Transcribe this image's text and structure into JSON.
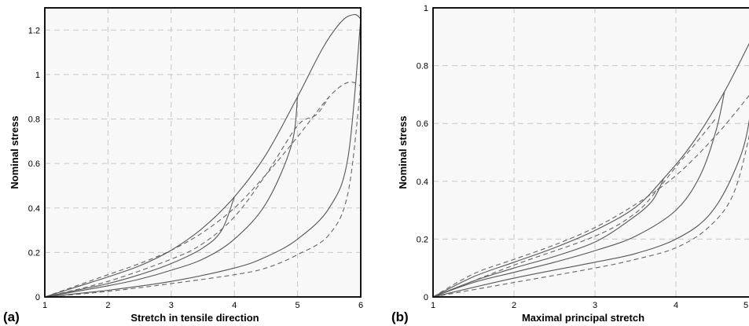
{
  "chart_data": [
    {
      "type": "line",
      "panel_label": "(a)",
      "xlabel": "Stretch in tensile direction",
      "ylabel": "Nominal stress",
      "xlim": [
        1,
        6
      ],
      "ylim": [
        0,
        1.3
      ],
      "xticks": [
        1,
        2,
        3,
        4,
        5,
        6
      ],
      "yticks": [
        0,
        0.2,
        0.4,
        0.6,
        0.8,
        1,
        1.2
      ],
      "grid": true,
      "series": [
        {
          "style": "solid",
          "points": [
            [
              1,
              0
            ],
            [
              1.5,
              0.045
            ],
            [
              2,
              0.09
            ],
            [
              2.5,
              0.14
            ],
            [
              3,
              0.21
            ],
            [
              3.5,
              0.31
            ],
            [
              4,
              0.45
            ],
            [
              4.5,
              0.64
            ],
            [
              5,
              0.9
            ],
            [
              5.4,
              1.12
            ],
            [
              5.7,
              1.24
            ],
            [
              5.9,
              1.27
            ],
            [
              6,
              1.25
            ]
          ]
        },
        {
          "style": "solid",
          "points": [
            [
              1,
              0
            ],
            [
              1.5,
              0.03
            ],
            [
              2,
              0.06
            ],
            [
              2.5,
              0.1
            ],
            [
              3,
              0.15
            ],
            [
              3.5,
              0.22
            ],
            [
              3.8,
              0.3
            ],
            [
              4,
              0.45
            ]
          ]
        },
        {
          "style": "solid",
          "points": [
            [
              1,
              0
            ],
            [
              1.5,
              0.025
            ],
            [
              2,
              0.05
            ],
            [
              2.5,
              0.08
            ],
            [
              3,
              0.12
            ],
            [
              3.5,
              0.17
            ],
            [
              4,
              0.26
            ],
            [
              4.5,
              0.42
            ],
            [
              4.9,
              0.68
            ],
            [
              5,
              0.9
            ]
          ]
        },
        {
          "style": "solid",
          "points": [
            [
              1,
              0
            ],
            [
              2,
              0.03
            ],
            [
              3,
              0.07
            ],
            [
              4,
              0.13
            ],
            [
              4.5,
              0.18
            ],
            [
              5,
              0.26
            ],
            [
              5.5,
              0.4
            ],
            [
              5.8,
              0.63
            ],
            [
              6,
              1.25
            ]
          ]
        },
        {
          "style": "dashed",
          "points": [
            [
              1,
              0
            ],
            [
              1.5,
              0.05
            ],
            [
              2,
              0.1
            ],
            [
              2.5,
              0.15
            ],
            [
              3,
              0.21
            ],
            [
              3.5,
              0.29
            ],
            [
              4,
              0.4
            ],
            [
              4.5,
              0.55
            ],
            [
              5,
              0.72
            ],
            [
              5.5,
              0.9
            ],
            [
              5.8,
              0.965
            ],
            [
              6,
              0.95
            ]
          ]
        },
        {
          "style": "dashed",
          "points": [
            [
              1,
              0
            ],
            [
              2,
              0.07
            ],
            [
              3,
              0.17
            ],
            [
              3.5,
              0.24
            ],
            [
              4,
              0.36
            ],
            [
              4.5,
              0.55
            ],
            [
              5,
              0.77
            ],
            [
              5.3,
              0.82
            ],
            [
              5.5,
              0.9
            ]
          ]
        },
        {
          "style": "dashed",
          "points": [
            [
              1,
              0
            ],
            [
              2,
              0.025
            ],
            [
              3,
              0.06
            ],
            [
              4,
              0.1
            ],
            [
              4.5,
              0.13
            ],
            [
              5,
              0.19
            ],
            [
              5.5,
              0.28
            ],
            [
              5.8,
              0.47
            ],
            [
              6,
              0.95
            ]
          ]
        }
      ]
    },
    {
      "type": "line",
      "panel_label": "(b)",
      "xlabel": "Maximal principal stretch",
      "ylabel": "Nominal stress",
      "xlim": [
        1,
        5
      ],
      "ylim": [
        0,
        1
      ],
      "xticks": [
        1,
        2,
        3,
        4,
        5
      ],
      "xtick_labels": [
        "1",
        "2",
        "3",
        "4",
        "5"
      ],
      "yticks": [
        0,
        0.2,
        0.4,
        0.6,
        0.8,
        1
      ],
      "grid": true,
      "series": [
        {
          "style": "solid",
          "points": [
            [
              1,
              0
            ],
            [
              1.5,
              0.07
            ],
            [
              2,
              0.12
            ],
            [
              2.5,
              0.17
            ],
            [
              3,
              0.23
            ],
            [
              3.5,
              0.31
            ],
            [
              3.85,
              0.41
            ],
            [
              4.2,
              0.53
            ],
            [
              4.6,
              0.71
            ],
            [
              5,
              0.93
            ]
          ]
        },
        {
          "style": "solid",
          "points": [
            [
              1,
              0
            ],
            [
              1.5,
              0.055
            ],
            [
              2,
              0.1
            ],
            [
              2.5,
              0.14
            ],
            [
              3,
              0.19
            ],
            [
              3.4,
              0.26
            ],
            [
              3.7,
              0.33
            ],
            [
              3.85,
              0.41
            ]
          ]
        },
        {
          "style": "solid",
          "points": [
            [
              1,
              0
            ],
            [
              1.5,
              0.05
            ],
            [
              2,
              0.085
            ],
            [
              2.5,
              0.12
            ],
            [
              3,
              0.16
            ],
            [
              3.5,
              0.21
            ],
            [
              4,
              0.3
            ],
            [
              4.3,
              0.42
            ],
            [
              4.5,
              0.58
            ],
            [
              4.6,
              0.71
            ]
          ]
        },
        {
          "style": "solid",
          "points": [
            [
              1,
              0
            ],
            [
              2,
              0.065
            ],
            [
              3,
              0.12
            ],
            [
              3.5,
              0.15
            ],
            [
              4,
              0.2
            ],
            [
              4.4,
              0.28
            ],
            [
              4.7,
              0.42
            ],
            [
              4.9,
              0.6
            ],
            [
              5,
              0.93
            ]
          ]
        },
        {
          "style": "dashed",
          "points": [
            [
              1,
              0
            ],
            [
              1.5,
              0.08
            ],
            [
              2,
              0.13
            ],
            [
              2.5,
              0.18
            ],
            [
              3,
              0.24
            ],
            [
              3.5,
              0.32
            ],
            [
              4,
              0.42
            ],
            [
              4.5,
              0.56
            ],
            [
              5,
              0.73
            ]
          ]
        },
        {
          "style": "dashed",
          "points": [
            [
              1,
              0
            ],
            [
              2,
              0.11
            ],
            [
              3,
              0.21
            ],
            [
              3.5,
              0.29
            ],
            [
              3.8,
              0.38
            ],
            [
              4,
              0.45
            ],
            [
              4.3,
              0.55
            ],
            [
              4.5,
              0.62
            ]
          ]
        },
        {
          "style": "dashed",
          "points": [
            [
              1,
              0
            ],
            [
              2,
              0.05
            ],
            [
              3,
              0.1
            ],
            [
              3.5,
              0.13
            ],
            [
              4,
              0.17
            ],
            [
              4.4,
              0.24
            ],
            [
              4.7,
              0.35
            ],
            [
              4.9,
              0.55
            ],
            [
              5,
              0.73
            ]
          ]
        }
      ]
    }
  ]
}
